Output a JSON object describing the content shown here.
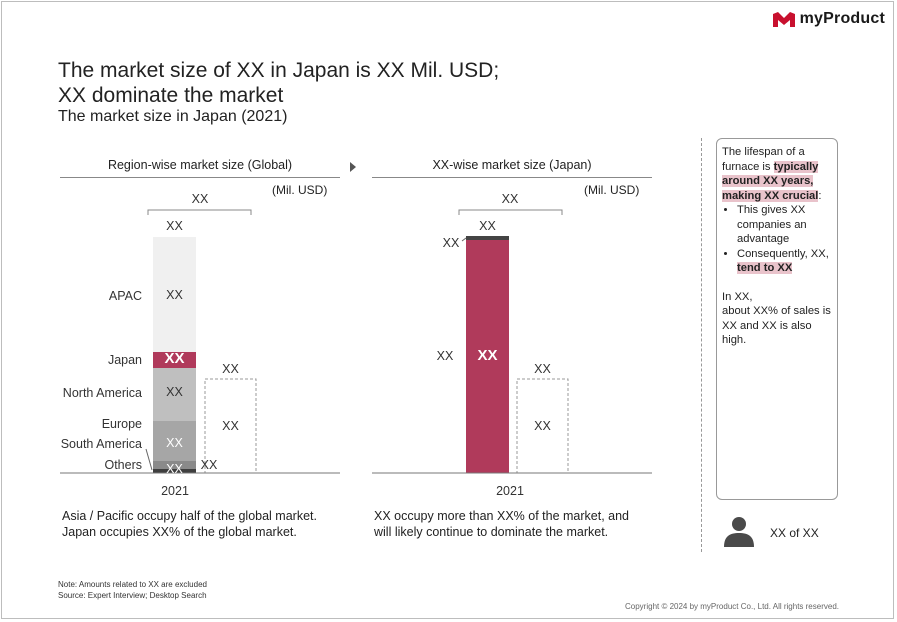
{
  "brand": {
    "name": "myProduct",
    "color_primary": "#c8102e"
  },
  "title_line1": "The market size of XX in Japan is XX Mil. USD;",
  "title_line2": "XX dominate the market",
  "subtitle": "The market size in Japan (2021)",
  "colors": {
    "japan": "#b03a5b",
    "apac": "#f0f0f0",
    "north_america": "#bfbfbf",
    "europe": "#a6a6a6",
    "south_america": "#8a8a8a",
    "others": "#555555",
    "dark_cap": "#444444"
  },
  "chart_data": [
    {
      "type": "bar",
      "title": "Region-wise market size (Global)",
      "unit": "(Mil. USD)",
      "categories": [
        "2021"
      ],
      "stack_order_bottom_to_top": [
        "Others",
        "South America",
        "Europe",
        "North America",
        "Japan",
        "APAC"
      ],
      "series": [
        {
          "name": "Others",
          "value_label": "XX",
          "share": 0.02
        },
        {
          "name": "South America",
          "value_label": "XX",
          "share": 0.085
        },
        {
          "name": "Europe",
          "value_label": "XX",
          "share": 0.115
        },
        {
          "name": "North America",
          "value_label": "XX",
          "share": 0.14
        },
        {
          "name": "Japan",
          "value_label": "XX",
          "share": 0.05
        },
        {
          "name": "APAC",
          "value_label": "XX",
          "share": 0.54
        }
      ],
      "total_label": "XX",
      "bracket_label": "XX",
      "secondary_bar": {
        "value_label": "XX",
        "top_label": "XX",
        "share": 0.38
      },
      "legend": "none"
    },
    {
      "type": "bar",
      "title": "XX-wise market size (Japan)",
      "unit": "(Mil. USD)",
      "categories": [
        "2021"
      ],
      "series": [
        {
          "name": "XX",
          "value_label": "XX",
          "share": 0.985
        },
        {
          "name": "XX",
          "value_label": "XX",
          "share": 0.015
        }
      ],
      "total_label": "XX",
      "bracket_label": "XX",
      "secondary_bar": {
        "value_label": "XX",
        "top_label": "XX",
        "share": 0.38
      },
      "legend": "none"
    }
  ],
  "left_chart": {
    "total": "XX",
    "bracket": "XX",
    "unit": "(Mil. USD)",
    "year": "2021",
    "labels": {
      "apac": "APAC",
      "japan": "Japan",
      "na": "North America",
      "eu": "Europe",
      "sa": "South America",
      "others": "Others"
    },
    "values": {
      "apac": "XX",
      "japan": "XX",
      "na": "XX",
      "sa": "XX",
      "others1": "XX",
      "others2": "XX"
    },
    "secondary": {
      "top": "XX",
      "mid": "XX"
    },
    "caption_line1": "Asia / Pacific occupy half of the global market.",
    "caption_line2": "Japan occupies XX% of the global market."
  },
  "right_chart": {
    "total": "XX",
    "bracket": "XX",
    "unit": "(Mil. USD)",
    "year": "2021",
    "values": {
      "cap": "XX",
      "main": "XX",
      "side": "XX"
    },
    "secondary": {
      "top": "XX",
      "mid": "XX"
    },
    "caption_line1": "XX occupy more than XX% of the market, and",
    "caption_line2": "will likely continue to dominate the market."
  },
  "sidebox": {
    "p1_a": "The lifespan of a furnace is ",
    "p1_hl": "typically around XX years, making XX crucial",
    "p1_b": ":",
    "b1": "This gives XX companies an advantage",
    "b2_a": "Consequently, XX, ",
    "b2_hl": "tend to XX",
    "p2_l1": "In XX,",
    "p2_l2": "about XX% of sales is XX and XX is also high."
  },
  "person_label": "XX of XX",
  "note_line1": "Note: Amounts related to XX are excluded",
  "note_line2": "Source: Expert Interview; Desktop Search",
  "copyright": "Copyright © 2024 by myProduct Co., Ltd.  All rights reserved."
}
